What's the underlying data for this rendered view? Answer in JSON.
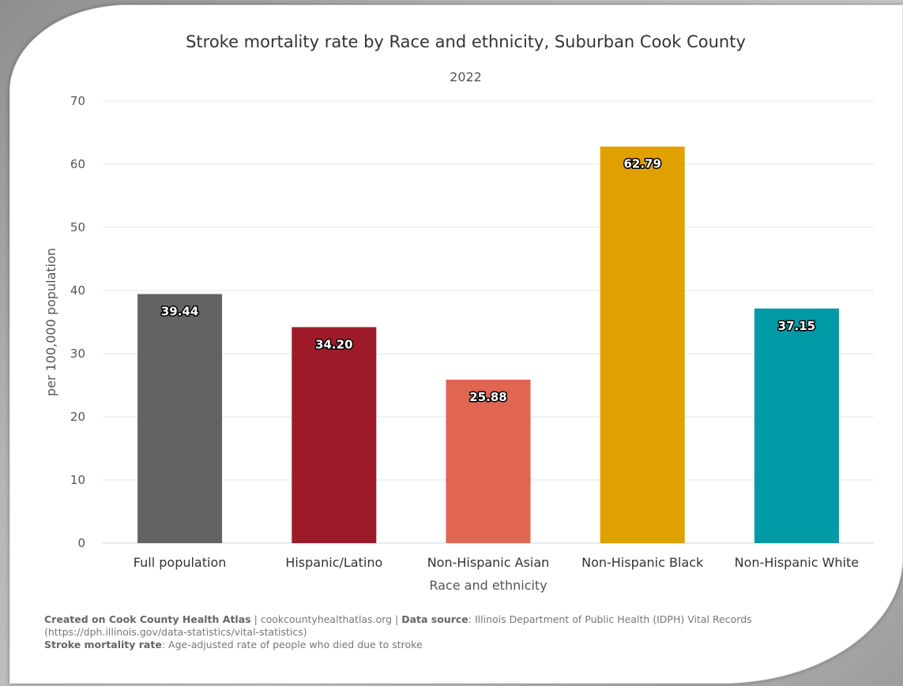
{
  "chart_data": {
    "type": "bar",
    "title": "Stroke mortality rate by Race and ethnicity, Suburban Cook County",
    "subtitle": "2022",
    "xlabel": "Race and ethnicity",
    "ylabel": "per 100,000 population",
    "categories": [
      "Full population",
      "Hispanic/Latino",
      "Non-Hispanic Asian",
      "Non-Hispanic Black",
      "Non-Hispanic White"
    ],
    "values": [
      39.44,
      34.2,
      25.88,
      62.79,
      37.15
    ],
    "value_labels": [
      "39.44",
      "34.20",
      "25.88",
      "62.79",
      "37.15"
    ],
    "colors": [
      "#636363",
      "#9e1a28",
      "#e06651",
      "#e0a000",
      "#0099a6"
    ],
    "ylim": [
      0,
      70
    ],
    "yticks": [
      "0",
      "10",
      "20",
      "30",
      "40",
      "50",
      "60",
      "70"
    ],
    "grid": true,
    "legend": "none"
  },
  "footer": {
    "created_label": "Created on Cook County Health Atlas",
    "site": " | cookcountyhealthatlas.org | ",
    "source_label": "Data source",
    "source_text": ": Illinois Department of Public Health (IDPH) Vital Records (https://dph.illinois.gov/data-statistics/vital-statistics)",
    "definition_label": "Stroke mortality rate",
    "definition_text": ": Age-adjusted rate of people who died due to stroke"
  }
}
